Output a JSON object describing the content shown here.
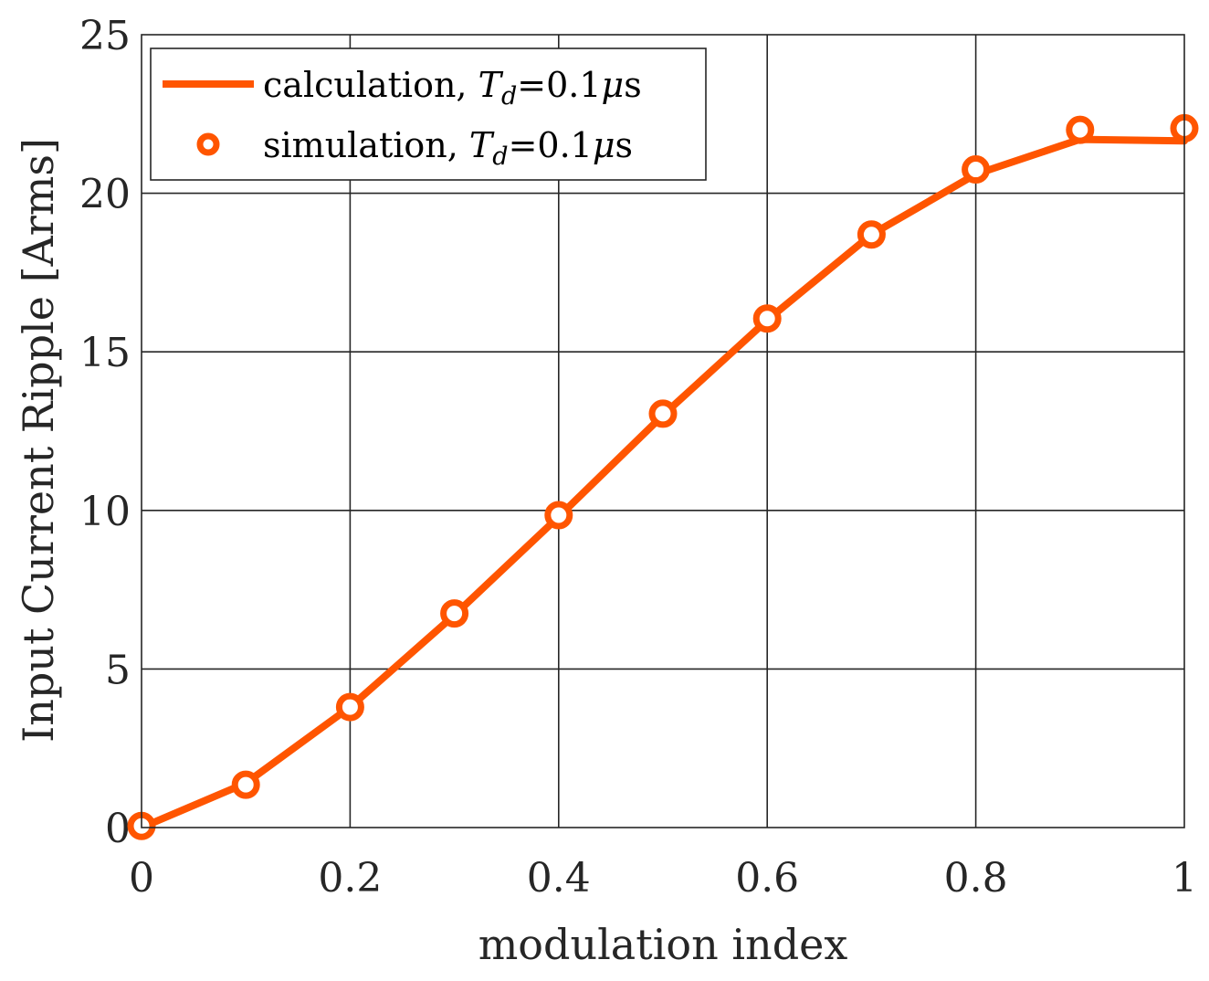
{
  "chart_data": {
    "type": "line",
    "xlabel": "modulation index",
    "ylabel": "Input Current Ripple [Arms]",
    "xlim": [
      0,
      1
    ],
    "ylim": [
      0,
      25
    ],
    "grid": true,
    "xticks": [
      0,
      0.2,
      0.4,
      0.6,
      0.8,
      1
    ],
    "xtick_labels": [
      "0",
      "0.2",
      "0.4",
      "0.6",
      "0.8",
      "1"
    ],
    "yticks": [
      0,
      5,
      10,
      15,
      20,
      25
    ],
    "ytick_labels": [
      "0",
      "5",
      "10",
      "15",
      "20",
      "25"
    ],
    "legend_position": "top-left",
    "color": "#FF5500",
    "series": [
      {
        "name": "calculation, Td=0.1μs",
        "legend_prefix": "calculation, ",
        "style": "line",
        "x": [
          0,
          0.1,
          0.2,
          0.3,
          0.4,
          0.5,
          0.6,
          0.7,
          0.8,
          0.9,
          1.0
        ],
        "y": [
          0,
          1.4,
          3.8,
          6.7,
          9.8,
          13.0,
          16.0,
          18.7,
          20.6,
          21.7,
          21.65
        ]
      },
      {
        "name": "simulation, Td=0.1μs",
        "legend_prefix": "simulation, ",
        "style": "marker",
        "x": [
          0,
          0.1,
          0.2,
          0.3,
          0.4,
          0.5,
          0.6,
          0.7,
          0.8,
          0.9,
          1.0
        ],
        "y": [
          0.05,
          1.35,
          3.8,
          6.75,
          9.85,
          13.05,
          16.05,
          18.7,
          20.75,
          22.0,
          22.05
        ]
      }
    ],
    "legend_math": {
      "var": "T",
      "sub": "d",
      "rest": "=0.1",
      "mu": "μ",
      "unit": "s"
    }
  }
}
